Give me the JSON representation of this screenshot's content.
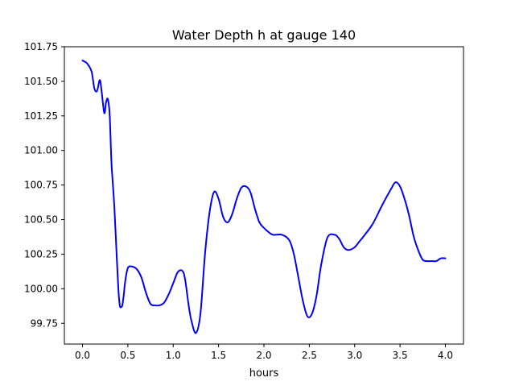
{
  "chart_data": {
    "type": "line",
    "title": "Water Depth h at gauge 140",
    "xlabel": "hours",
    "ylabel": "",
    "xlim": [
      -0.2,
      4.2
    ],
    "ylim": [
      99.6,
      101.75
    ],
    "x_ticks": [
      0.0,
      0.5,
      1.0,
      1.5,
      2.0,
      2.5,
      3.0,
      3.5,
      4.0
    ],
    "x_tick_labels": [
      "0.0",
      "0.5",
      "1.0",
      "1.5",
      "2.0",
      "2.5",
      "3.0",
      "3.5",
      "4.0"
    ],
    "y_ticks": [
      99.75,
      100.0,
      100.25,
      100.5,
      100.75,
      101.0,
      101.25,
      101.5,
      101.75
    ],
    "y_tick_labels": [
      "99.75",
      "100.00",
      "100.25",
      "100.50",
      "100.75",
      "101.00",
      "101.25",
      "101.50",
      "101.75"
    ],
    "grid": false,
    "series": [
      {
        "color": "#0000ff",
        "x": [
          0.0,
          0.05,
          0.1,
          0.13,
          0.16,
          0.19,
          0.21,
          0.24,
          0.26,
          0.28,
          0.3,
          0.32,
          0.35,
          0.4,
          0.43,
          0.45,
          0.47,
          0.5,
          0.55,
          0.6,
          0.65,
          0.7,
          0.75,
          0.8,
          0.85,
          0.9,
          0.95,
          1.0,
          1.05,
          1.1,
          1.13,
          1.17,
          1.2,
          1.25,
          1.3,
          1.35,
          1.4,
          1.45,
          1.5,
          1.55,
          1.6,
          1.65,
          1.7,
          1.75,
          1.8,
          1.85,
          1.9,
          1.95,
          2.0,
          2.05,
          2.1,
          2.2,
          2.28,
          2.33,
          2.38,
          2.43,
          2.48,
          2.53,
          2.58,
          2.63,
          2.7,
          2.78,
          2.83,
          2.88,
          2.93,
          3.0,
          3.05,
          3.1,
          3.2,
          3.3,
          3.4,
          3.45,
          3.5,
          3.55,
          3.6,
          3.65,
          3.7,
          3.75,
          3.8,
          3.85,
          3.9,
          3.95,
          4.0
        ],
        "y": [
          101.65,
          101.63,
          101.57,
          101.45,
          101.43,
          101.51,
          101.43,
          101.27,
          101.35,
          101.37,
          101.25,
          100.9,
          100.6,
          99.95,
          99.87,
          99.93,
          100.05,
          100.15,
          100.16,
          100.14,
          100.08,
          99.97,
          99.89,
          99.88,
          99.88,
          99.9,
          99.96,
          100.04,
          100.12,
          100.13,
          100.07,
          99.88,
          99.77,
          99.68,
          99.82,
          100.25,
          100.55,
          100.7,
          100.65,
          100.52,
          100.48,
          100.54,
          100.65,
          100.73,
          100.74,
          100.7,
          100.58,
          100.48,
          100.44,
          100.41,
          100.39,
          100.39,
          100.35,
          100.25,
          100.08,
          99.91,
          99.8,
          99.82,
          99.95,
          100.17,
          100.37,
          100.39,
          100.36,
          100.3,
          100.28,
          100.3,
          100.34,
          100.38,
          100.47,
          100.6,
          100.72,
          100.77,
          100.74,
          100.65,
          100.53,
          100.38,
          100.28,
          100.21,
          100.2,
          100.2,
          100.2,
          100.22,
          100.22
        ]
      }
    ]
  }
}
